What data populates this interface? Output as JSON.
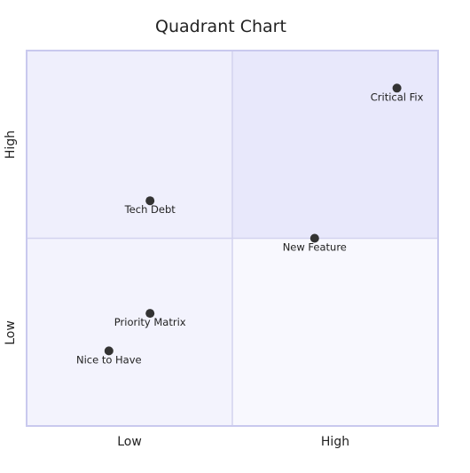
{
  "chart_data": {
    "type": "scatter",
    "title": "Quadrant Chart",
    "x_axis": {
      "low_label": "Low",
      "high_label": "High"
    },
    "y_axis": {
      "low_label": "Low",
      "high_label": "High"
    },
    "xlim": [
      0,
      1
    ],
    "ylim": [
      0,
      1
    ],
    "points": [
      {
        "label": "Critical Fix",
        "x": 0.9,
        "y": 0.9
      },
      {
        "label": "Tech Debt",
        "x": 0.3,
        "y": 0.6
      },
      {
        "label": "New Feature",
        "x": 0.7,
        "y": 0.5
      },
      {
        "label": "Priority Matrix",
        "x": 0.3,
        "y": 0.3
      },
      {
        "label": "Nice to Have",
        "x": 0.2,
        "y": 0.2
      }
    ],
    "colors": {
      "quadrant_top_right": "#e8e8fb",
      "quadrant_top_left": "#efeffc",
      "quadrant_bottom_left": "#f3f3fd",
      "quadrant_bottom_right": "#f8f8fe",
      "border": "#c9c9ee",
      "divider": "#d3d3ef",
      "point": "#333333"
    },
    "grid": false,
    "legend": "none"
  }
}
